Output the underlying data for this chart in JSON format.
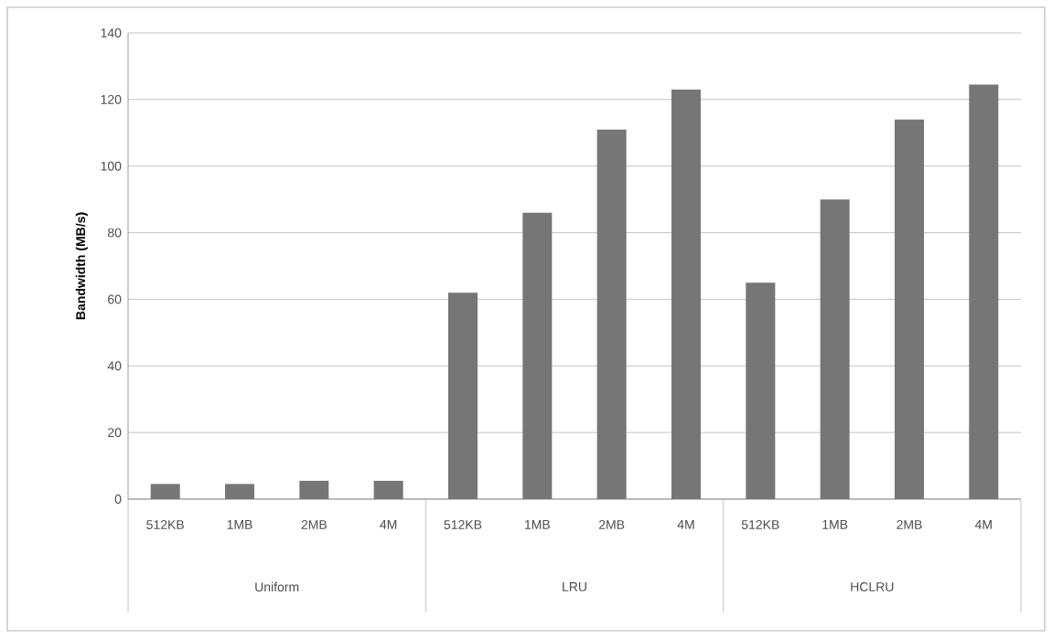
{
  "chart_data": {
    "type": "bar",
    "ylabel": "Bandwidth (MB/s)",
    "categories": [
      "512KB",
      "1MB",
      "2MB",
      "4M",
      "512KB",
      "1MB",
      "2MB",
      "4M",
      "512KB",
      "1MB",
      "2MB",
      "4M"
    ],
    "values": [
      4.5,
      4.5,
      5.5,
      5.5,
      62,
      86,
      111,
      123,
      65,
      90,
      114,
      124.5
    ],
    "color": "#767676",
    "annotations": [
      "Uniform",
      "LRU",
      "HCLRU"
    ],
    "ylim": [
      0,
      140
    ],
    "yticks": [
      0,
      20,
      40,
      60,
      80,
      100,
      120,
      140
    ],
    "grid": "y"
  }
}
